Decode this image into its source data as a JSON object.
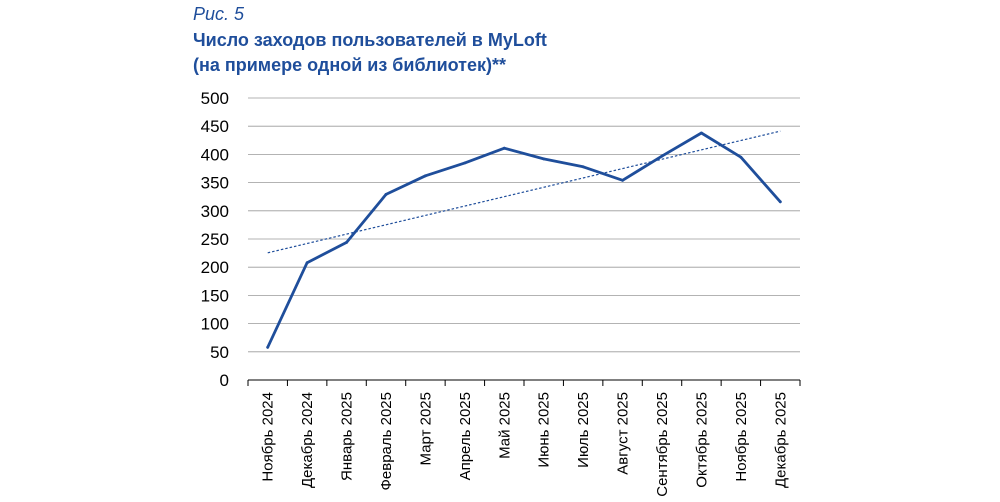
{
  "figure": {
    "label": "Рис. 5",
    "title_line1": "Число заходов пользователей в MyLoft",
    "title_line2": "(на примере одной из библиотек)**"
  },
  "chart_data": {
    "type": "line",
    "categories": [
      "Ноябрь 2024",
      "Декабрь 2024",
      "Январь 2025",
      "Февраль 2025",
      "Март 2025",
      "Апрель 2025",
      "Май 2025",
      "Июнь 2025",
      "Июль 2025",
      "Август 2025",
      "Сентябрь 2025",
      "Октябрь 2025",
      "Ноябрь 2025",
      "Декабрь 2025"
    ],
    "series": [
      {
        "values": [
          58,
          208,
          244,
          329,
          362,
          385,
          411,
          392,
          378,
          354,
          397,
          438,
          395,
          316
        ],
        "color": "#1f4e9b"
      }
    ],
    "trendline": {
      "type": "linear",
      "style": "dotted",
      "color": "#1f4e9b"
    },
    "yticks": [
      0,
      50,
      100,
      150,
      200,
      250,
      300,
      350,
      400,
      450,
      500
    ],
    "ylim": [
      0,
      500
    ],
    "xlabel": "",
    "ylabel": "",
    "grid": true,
    "legend": "none"
  }
}
